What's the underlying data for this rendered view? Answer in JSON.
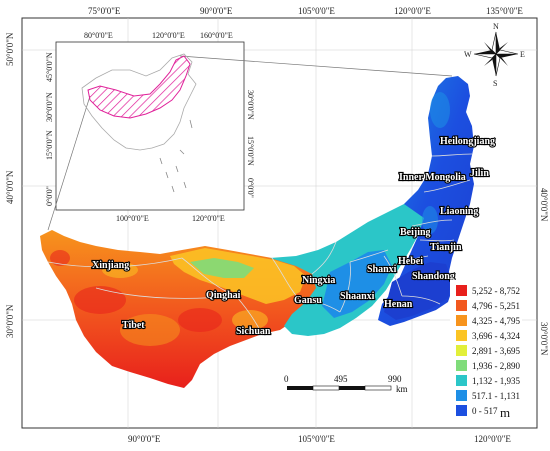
{
  "top_ticks": [
    "75°0'0\"E",
    "90°0'0\"E",
    "105°0'0\"E",
    "120°0'0\"E",
    "135°0'0\"E"
  ],
  "bottom_ticks": [
    "90°0'0\"E",
    "105°0'0\"E",
    "120°0'0\"E"
  ],
  "left_ticks": [
    "50°0'0\"N",
    "40°0'0\"N",
    "30°0'0\"N"
  ],
  "right_ticks": [
    "40°0'0\"N",
    "30°0'0\"N"
  ],
  "inset": {
    "top_ticks": [
      "80°0'0\"E",
      "120°0'0\"E",
      "160°0'0\"E"
    ],
    "bottom_ticks": [
      "100°0'0\"E",
      "120°0'0\"E"
    ],
    "left_ticks": [
      "45°0'0\"N",
      "30°0'0\"N",
      "15°0'0\"N",
      "0°0'0\""
    ],
    "right_ticks": [
      "30°0'0\"N",
      "15°0'0\"N",
      "0°0'0\""
    ]
  },
  "provinces": [
    "Heilongjiang",
    "Jilin",
    "Inner Mongolia",
    "Liaoning",
    "Beijing",
    "Tianjin",
    "Hebei",
    "Shandong",
    "Shanxi",
    "Shaanxi",
    "Henan",
    "Ningxia",
    "Gansu",
    "Qinghai",
    "Xinjiang",
    "Tibet",
    "Sichuan"
  ],
  "legend": {
    "unit": "m",
    "classes": [
      {
        "label": "5,252 - 8,752",
        "color": "#e8201c"
      },
      {
        "label": "4,796 - 5,251",
        "color": "#f2581e"
      },
      {
        "label": "4,325 - 4,795",
        "color": "#f7941d"
      },
      {
        "label": "3,696 - 4,324",
        "color": "#fbc424"
      },
      {
        "label": "2,891 - 3,695",
        "color": "#e2ef3a"
      },
      {
        "label": "1,936 - 2,890",
        "color": "#7fdc7a"
      },
      {
        "label": "1,132 - 1,935",
        "color": "#2bc6c8"
      },
      {
        "label": "517.1 - 1,131",
        "color": "#1e8fe6"
      },
      {
        "label": "0 - 517",
        "color": "#1c4fe0"
      }
    ]
  },
  "scale_bar": {
    "labels": [
      "0",
      "495",
      "990"
    ],
    "unit": "km"
  },
  "compass": {
    "n": "N",
    "e": "E",
    "s": "S",
    "w": "W"
  },
  "colors": {
    "border": "#dddddd",
    "inset_region": "#e0229a",
    "frame": "#333333"
  }
}
